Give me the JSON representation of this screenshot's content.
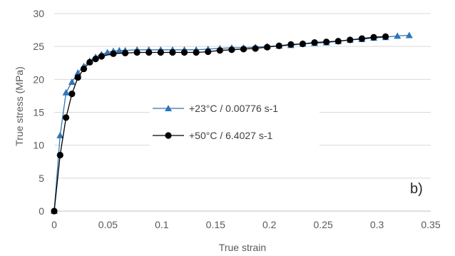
{
  "chart_data": {
    "type": "line",
    "xlabel": "True strain",
    "ylabel": "True stress (MPa)",
    "xlim": [
      0,
      0.35
    ],
    "ylim": [
      0,
      30
    ],
    "xticks": [
      0,
      0.05,
      0.1,
      0.15,
      0.2,
      0.25,
      0.3,
      0.35
    ],
    "xtick_labels": [
      "0",
      "0.05",
      "0.1",
      "0.15",
      "0.2",
      "0.25",
      "0.3",
      "0.35"
    ],
    "yticks": [
      0,
      5,
      10,
      15,
      20,
      25,
      30
    ],
    "ytick_labels": [
      "0",
      "5",
      "10",
      "15",
      "20",
      "25",
      "30"
    ],
    "grid": "horizontal",
    "panel_label": "b)",
    "legend_position": "center",
    "series": [
      {
        "name": "+23°C / 0.00776 s-1",
        "color": "#2e75b6",
        "marker": "triangle",
        "x": [
          0,
          0.0055,
          0.011,
          0.0165,
          0.022,
          0.0275,
          0.033,
          0.0385,
          0.044,
          0.0495,
          0.055,
          0.0605,
          0.066,
          0.077,
          0.088,
          0.099,
          0.11,
          0.121,
          0.132,
          0.143,
          0.154,
          0.165,
          0.176,
          0.187,
          0.198,
          0.209,
          0.22,
          0.231,
          0.242,
          0.253,
          0.264,
          0.275,
          0.286,
          0.297,
          0.308,
          0.319,
          0.33
        ],
        "y": [
          0,
          11.5,
          18.0,
          19.6,
          21.0,
          22.0,
          22.8,
          23.4,
          23.8,
          24.1,
          24.3,
          24.4,
          24.4,
          24.5,
          24.5,
          24.5,
          24.5,
          24.5,
          24.5,
          24.6,
          24.7,
          24.8,
          24.8,
          24.9,
          25.0,
          25.1,
          25.2,
          25.4,
          25.5,
          25.6,
          25.8,
          26.0,
          26.1,
          26.3,
          26.4,
          26.6,
          26.7
        ]
      },
      {
        "name": "+50°C / 6.4027 s-1",
        "color": "#000000",
        "marker": "circle",
        "x": [
          0,
          0.0055,
          0.011,
          0.0165,
          0.022,
          0.0275,
          0.033,
          0.0385,
          0.044,
          0.055,
          0.066,
          0.077,
          0.088,
          0.099,
          0.11,
          0.121,
          0.132,
          0.143,
          0.154,
          0.165,
          0.176,
          0.187,
          0.198,
          0.209,
          0.22,
          0.231,
          0.242,
          0.253,
          0.264,
          0.275,
          0.286,
          0.297,
          0.308
        ],
        "y": [
          0,
          8.5,
          14.2,
          17.8,
          20.3,
          21.6,
          22.6,
          23.1,
          23.5,
          23.9,
          24.0,
          24.1,
          24.1,
          24.1,
          24.1,
          24.1,
          24.1,
          24.2,
          24.4,
          24.5,
          24.6,
          24.7,
          24.9,
          25.1,
          25.3,
          25.4,
          25.6,
          25.7,
          25.8,
          26.0,
          26.2,
          26.4,
          26.5
        ]
      }
    ]
  }
}
